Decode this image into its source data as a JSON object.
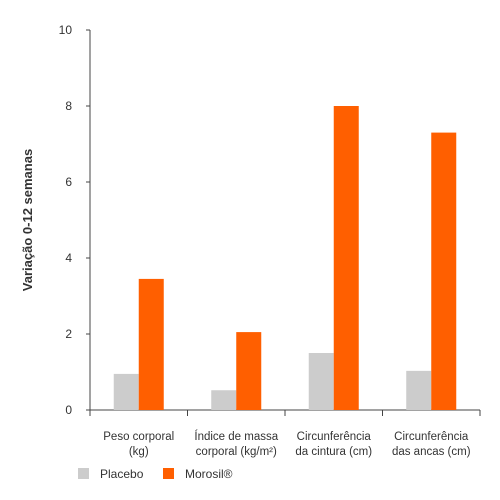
{
  "chart_data": {
    "type": "bar",
    "categories": [
      [
        "Peso corporal",
        "(kg)"
      ],
      [
        "Índice de massa",
        "corporal (kg/m²)"
      ],
      [
        "Circunferência",
        "da cintura (cm)"
      ],
      [
        "Circunferência",
        "das ancas (cm)"
      ]
    ],
    "series": [
      {
        "name": "Placebo",
        "color": "#cccccc",
        "values": [
          0.95,
          0.52,
          1.5,
          1.03
        ]
      },
      {
        "name": "Morosil®",
        "color": "#ff5f00",
        "values": [
          3.45,
          2.05,
          8.0,
          7.3
        ]
      }
    ],
    "ylabel": "Variação 0-12 semanas",
    "ylim": [
      0,
      10
    ],
    "yticks": [
      0,
      2,
      4,
      6,
      8,
      10
    ],
    "grid": false,
    "legend_position": "bottom-left"
  }
}
